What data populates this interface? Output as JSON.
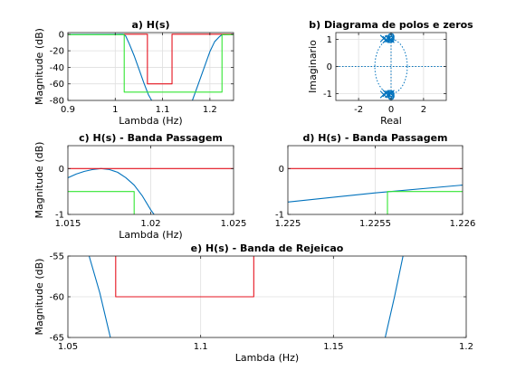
{
  "colors": {
    "response": "#0072BD",
    "spec_red": "#e6131f",
    "spec_green": "#33e633",
    "grid": "#dfdfdf"
  },
  "chart_data": [
    {
      "type": "line",
      "id": "a",
      "title": "a) H(s)",
      "xlabel": "Lambda (Hz)",
      "ylabel": "Magnitude (dB)",
      "xlim": [
        0.9,
        1.25
      ],
      "ylim": [
        -80,
        2
      ],
      "xticks": [
        0.9,
        1,
        1.1,
        1.2
      ],
      "xtick_labels": [
        "0.9",
        "1",
        "1.1",
        "1.2"
      ],
      "yticks": [
        0,
        -20,
        -40,
        -60,
        -80
      ],
      "ytick_labels": [
        "0",
        "-20",
        "-40",
        "-60",
        "-80"
      ],
      "grid": true,
      "series": [
        {
          "color": "response",
          "segments": [
            [
              [
                0.9,
                -0.3
              ],
              [
                1.0,
                -0.05
              ],
              [
                1.012,
                -0.02
              ],
              [
                1.017,
                0
              ],
              [
                1.022,
                -2
              ],
              [
                1.03,
                -12
              ],
              [
                1.04,
                -26
              ],
              [
                1.05,
                -42
              ],
              [
                1.06,
                -58
              ],
              [
                1.07,
                -73
              ],
              [
                1.077,
                -80
              ]
            ],
            [
              [
                1.163,
                -80
              ],
              [
                1.17,
                -69
              ],
              [
                1.18,
                -53
              ],
              [
                1.19,
                -37
              ],
              [
                1.2,
                -21
              ],
              [
                1.21,
                -9
              ],
              [
                1.22,
                -3
              ],
              [
                1.2256,
                -0.5
              ],
              [
                1.25,
                -0.1
              ]
            ]
          ]
        },
        {
          "color": "spec_red",
          "segments": [
            [
              [
                1.018,
                0
              ],
              [
                1.068,
                0
              ],
              [
                1.068,
                -60
              ],
              [
                1.12,
                -60
              ],
              [
                1.12,
                0
              ],
              [
                1.25,
                0
              ]
            ]
          ]
        },
        {
          "color": "spec_green",
          "segments": [
            [
              [
                0.9,
                -0.5
              ],
              [
                1.019,
                -0.5
              ],
              [
                1.019,
                -70
              ],
              [
                1.2256,
                -70
              ],
              [
                1.2256,
                -0.5
              ],
              [
                1.25,
                -0.5
              ]
            ]
          ]
        }
      ]
    },
    {
      "type": "scatter",
      "id": "b",
      "title": "b) Diagrama de polos e zeros",
      "xlabel": "Real",
      "ylabel": "Imaginario",
      "xlim": [
        -3.4,
        3.4
      ],
      "ylim": [
        -1.25,
        1.25
      ],
      "xticks": [
        -2,
        0,
        2
      ],
      "xtick_labels": [
        "-2",
        "0",
        "2"
      ],
      "yticks": [
        1,
        0,
        -1
      ],
      "ytick_labels": [
        "1",
        "0",
        "-1"
      ],
      "grid": true,
      "unit_circle": true,
      "poles": [
        [
          -0.3,
          0.99
        ],
        [
          -0.3,
          -0.99
        ],
        [
          -0.15,
          1.02
        ],
        [
          -0.15,
          -1.02
        ],
        [
          -0.02,
          1.0
        ],
        [
          -0.02,
          -1.0
        ],
        [
          -0.45,
          1.03
        ],
        [
          -0.45,
          -1.03
        ]
      ],
      "zeros": [
        [
          0,
          1.06
        ],
        [
          0,
          -1.06
        ],
        [
          0,
          1.11
        ],
        [
          0,
          -1.11
        ],
        [
          0,
          1.0
        ],
        [
          0,
          -1.0
        ]
      ]
    },
    {
      "type": "line",
      "id": "c",
      "title": "c) H(s) - Banda Passagem",
      "xlabel": "Lambda (Hz)",
      "ylabel": "Magnitude (dB)",
      "xlim": [
        1.015,
        1.025
      ],
      "ylim": [
        -1,
        0.5
      ],
      "xticks": [
        1.015,
        1.02,
        1.025
      ],
      "xtick_labels": [
        "1.015",
        "1.02",
        "1.025"
      ],
      "yticks": [
        0,
        -1
      ],
      "ytick_labels": [
        "0",
        "-1"
      ],
      "grid": true,
      "series": [
        {
          "color": "response",
          "segments": [
            [
              [
                1.015,
                -0.2
              ],
              [
                1.0155,
                -0.12
              ],
              [
                1.016,
                -0.06
              ],
              [
                1.0165,
                -0.02
              ],
              [
                1.017,
                0
              ],
              [
                1.0175,
                -0.02
              ],
              [
                1.018,
                -0.08
              ],
              [
                1.0185,
                -0.2
              ],
              [
                1.019,
                -0.36
              ],
              [
                1.0195,
                -0.6
              ],
              [
                1.02,
                -0.9
              ],
              [
                1.0202,
                -1
              ]
            ]
          ]
        },
        {
          "color": "spec_red",
          "segments": [
            [
              [
                1.015,
                0
              ],
              [
                1.025,
                0
              ]
            ]
          ]
        },
        {
          "color": "spec_green",
          "segments": [
            [
              [
                1.015,
                -0.5
              ],
              [
                1.019,
                -0.5
              ],
              [
                1.019,
                -1
              ]
            ]
          ]
        }
      ]
    },
    {
      "type": "line",
      "id": "d",
      "title": "d) H(s) - Banda Passagem",
      "xlabel": "",
      "ylabel": "",
      "xlim": [
        1.225,
        1.226
      ],
      "ylim": [
        -1,
        0.5
      ],
      "xticks": [
        1.225,
        1.2255,
        1.226
      ],
      "xtick_labels": [
        "1.225",
        "1.2255",
        "1.226"
      ],
      "yticks": [
        0,
        -1
      ],
      "ytick_labels": [
        "0",
        "-1"
      ],
      "grid": true,
      "series": [
        {
          "color": "response",
          "segments": [
            [
              [
                1.225,
                -0.73
              ],
              [
                1.2255,
                -0.53
              ],
              [
                1.226,
                -0.36
              ]
            ]
          ]
        },
        {
          "color": "spec_red",
          "segments": [
            [
              [
                1.225,
                0
              ],
              [
                1.226,
                0
              ]
            ]
          ]
        },
        {
          "color": "spec_green",
          "segments": [
            [
              [
                1.22557,
                -1
              ],
              [
                1.22557,
                -0.5
              ],
              [
                1.226,
                -0.5
              ]
            ]
          ]
        }
      ]
    },
    {
      "type": "line",
      "id": "e",
      "title": "e) H(s) - Banda de Rejeicao",
      "xlabel": "Lambda (Hz)",
      "ylabel": "Magnitude (dB)",
      "xlim": [
        1.05,
        1.2
      ],
      "ylim": [
        -65,
        -55
      ],
      "xticks": [
        1.05,
        1.1,
        1.15,
        1.2
      ],
      "xtick_labels": [
        "1.05",
        "1.1",
        "1.15",
        "1.2"
      ],
      "yticks": [
        -55,
        -60,
        -65
      ],
      "ytick_labels": [
        "-55",
        "-60",
        "-65"
      ],
      "grid": true,
      "series": [
        {
          "color": "response",
          "segments": [
            [
              [
                1.058,
                -55
              ],
              [
                1.062,
                -59.5
              ],
              [
                1.066,
                -65
              ]
            ],
            [
              [
                1.1695,
                -65
              ],
              [
                1.173,
                -60
              ],
              [
                1.1762,
                -55
              ]
            ]
          ]
        },
        {
          "color": "spec_red",
          "segments": [
            [
              [
                1.068,
                -55
              ],
              [
                1.068,
                -60
              ],
              [
                1.12,
                -60
              ],
              [
                1.12,
                -55
              ]
            ]
          ]
        }
      ]
    }
  ]
}
